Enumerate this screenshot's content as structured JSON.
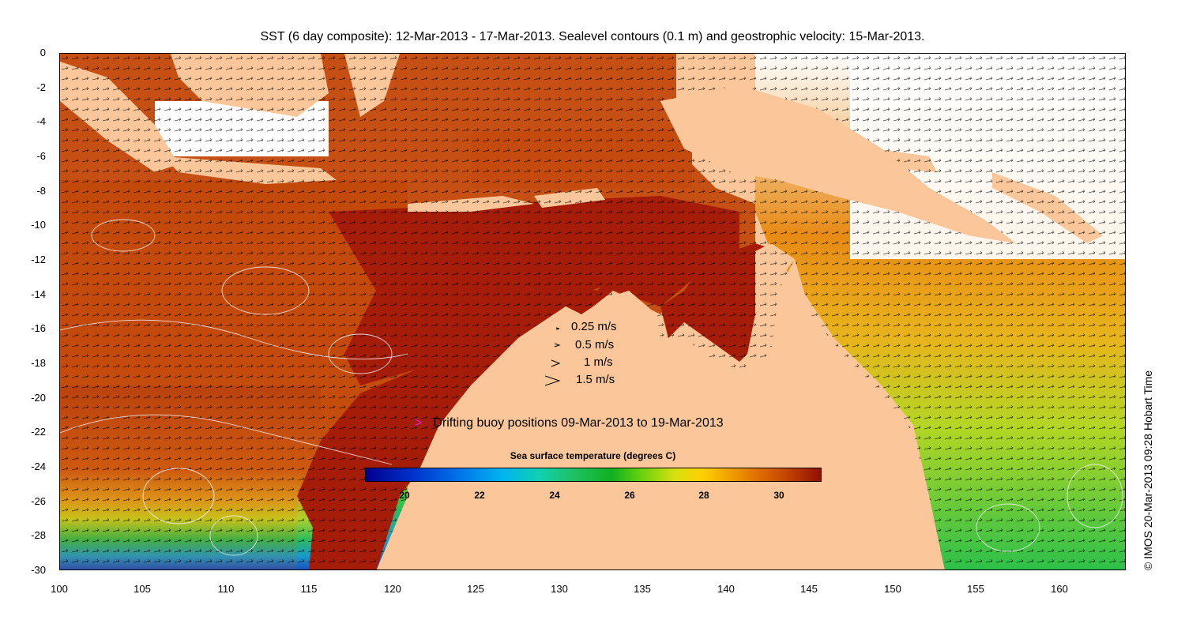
{
  "title": "SST (6 day composite): 12-Mar-2013 - 17-Mar-2013. Sealevel contours (0.1 m) and geostrophic velocity: 15-Mar-2013.",
  "y_axis_labels": [
    "0",
    "-2",
    "-4",
    "-6",
    "-8",
    "-10",
    "-12",
    "-14",
    "-16",
    "-18",
    "-20",
    "-22",
    "-24",
    "-26",
    "-28",
    "-30"
  ],
  "x_axis_labels": [
    "100",
    "105",
    "110",
    "115",
    "120",
    "125",
    "130",
    "135",
    "140",
    "145",
    "150",
    "155",
    "160"
  ],
  "velocity_legend": [
    "0.25 m/s",
    "0.5 m/s",
    "1 m/s",
    "1.5 m/s"
  ],
  "buoy_marker": ">",
  "buoy_legend": "Drifting buoy positions 09-Mar-2013 to 19-Mar-2013",
  "colorbar": {
    "title": "Sea surface temperature (degrees C)",
    "ticks": [
      "20",
      "22",
      "24",
      "26",
      "28",
      "30"
    ],
    "range": [
      19,
      31
    ]
  },
  "stamp": "© IMOS 20-Mar-2013 09:28 Hobart Time",
  "colors": {
    "land": "#fbc79a",
    "warm_sea": "#c0460a",
    "hot_sea": "#a01e08",
    "buoy": "#e020e0"
  }
}
